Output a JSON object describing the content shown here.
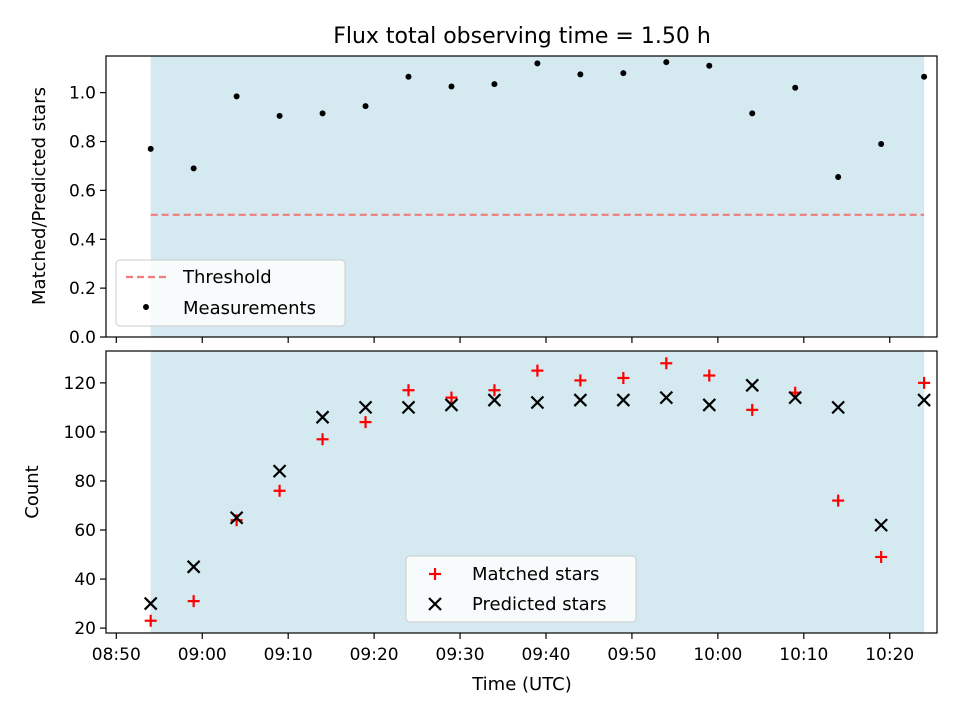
{
  "title": "Flux total observing time = 1.50 h",
  "colors": {
    "shade": "#d4eaf0",
    "threshold": "#f07c7c",
    "matched": "#ff0000",
    "predicted": "#000000",
    "measurement": "#000000"
  },
  "chart_data": [
    {
      "type": "scatter",
      "ylabel": "Matched/Predicted stars",
      "ylim": [
        0,
        1.15
      ],
      "yticks": [
        "0.0",
        "0.2",
        "0.4",
        "0.6",
        "0.8",
        "1.0"
      ],
      "shaded_span": [
        "08:54",
        "10:24"
      ],
      "threshold": 0.5,
      "legend_position": "lower-left",
      "legend": [
        "Threshold",
        "Measurements"
      ],
      "x": [
        "08:54",
        "08:59",
        "09:04",
        "09:09",
        "09:14",
        "09:19",
        "09:24",
        "09:29",
        "09:34",
        "09:39",
        "09:44",
        "09:49",
        "09:54",
        "09:59",
        "10:04",
        "10:09",
        "10:14",
        "10:19",
        "10:24"
      ],
      "series": [
        {
          "name": "Measurements",
          "values": [
            0.77,
            0.69,
            0.985,
            0.905,
            0.915,
            0.945,
            1.065,
            1.025,
            1.035,
            1.12,
            1.075,
            1.08,
            1.125,
            1.11,
            0.915,
            1.02,
            0.655,
            0.79,
            1.065
          ]
        }
      ]
    },
    {
      "type": "scatter",
      "xlabel": "Time (UTC)",
      "ylabel": "Count",
      "ylim": [
        18,
        133
      ],
      "yticks": [
        "20",
        "40",
        "60",
        "80",
        "100",
        "120"
      ],
      "xticks": [
        "08:50",
        "09:00",
        "09:10",
        "09:20",
        "09:30",
        "09:40",
        "09:50",
        "10:00",
        "10:10",
        "10:20"
      ],
      "legend_position": "lower-center",
      "legend": [
        "Matched stars",
        "Predicted stars"
      ],
      "x": [
        "08:54",
        "08:59",
        "09:04",
        "09:09",
        "09:14",
        "09:19",
        "09:24",
        "09:29",
        "09:34",
        "09:39",
        "09:44",
        "09:49",
        "09:54",
        "09:59",
        "10:04",
        "10:09",
        "10:14",
        "10:19",
        "10:24"
      ],
      "series": [
        {
          "name": "Matched stars",
          "values": [
            23,
            31,
            64,
            76,
            97,
            104,
            117,
            114,
            117,
            125,
            121,
            122,
            128,
            123,
            109,
            116,
            72,
            49,
            120
          ]
        },
        {
          "name": "Predicted stars",
          "values": [
            30,
            45,
            65,
            84,
            106,
            110,
            110,
            111,
            113,
            112,
            113,
            113,
            114,
            111,
            119,
            114,
            110,
            62,
            113
          ]
        }
      ]
    }
  ]
}
